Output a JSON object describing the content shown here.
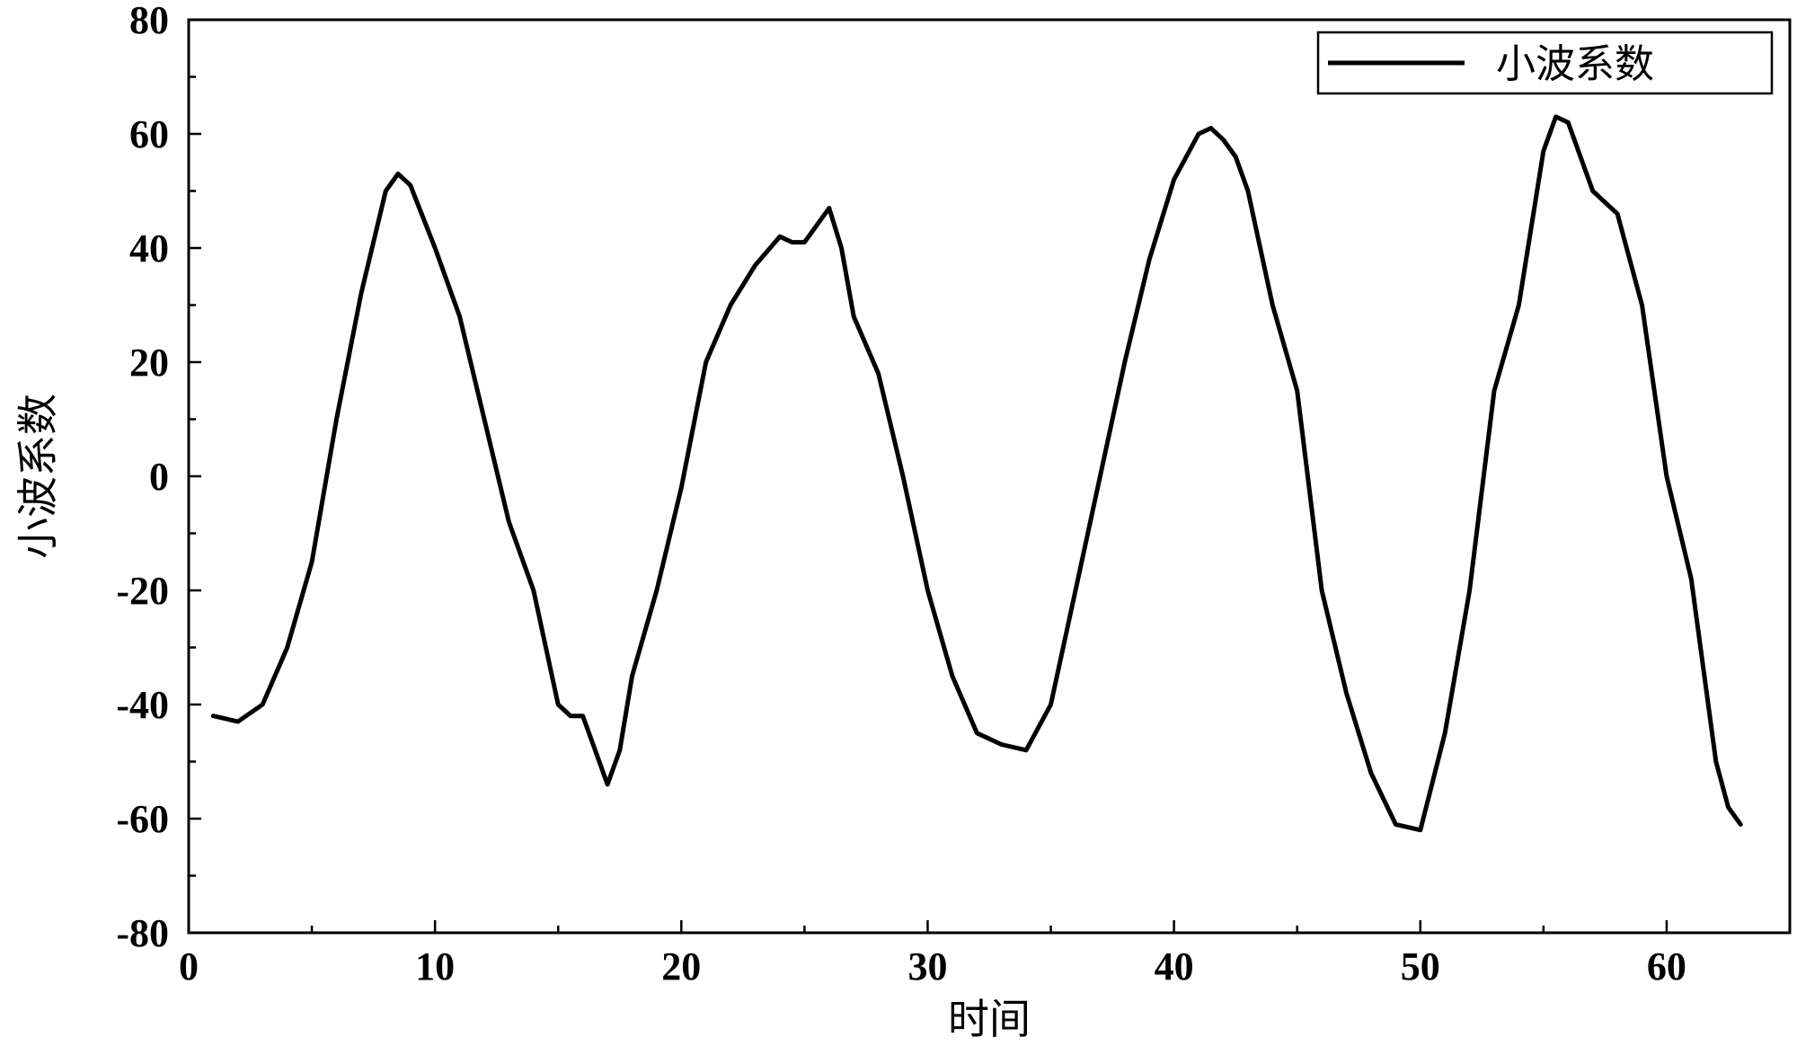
{
  "chart_data": {
    "type": "line",
    "title": "",
    "xlabel": "时间",
    "ylabel": "小波系数",
    "xlim": [
      0,
      65
    ],
    "ylim": [
      -80,
      80
    ],
    "x_ticks": [
      0,
      10,
      20,
      30,
      40,
      50,
      60
    ],
    "y_ticks": [
      -80,
      -60,
      -40,
      -20,
      0,
      20,
      40,
      60,
      80
    ],
    "grid": false,
    "legend_position": "top-right",
    "series": [
      {
        "name": "小波系数",
        "color": "#000000",
        "x": [
          1,
          2,
          3,
          4,
          5,
          6,
          7,
          8,
          8.5,
          9,
          10,
          11,
          12,
          13,
          14,
          14.5,
          15,
          15.5,
          16,
          16.5,
          17,
          17.5,
          18,
          19,
          20,
          21,
          22,
          23,
          24,
          24.5,
          25,
          25.5,
          26,
          26.5,
          27,
          28,
          29,
          30,
          31,
          32,
          33,
          34,
          35,
          36,
          37,
          38,
          39,
          40,
          41,
          41.5,
          42,
          42.5,
          43,
          44,
          45,
          46,
          47,
          48,
          49,
          50,
          51,
          52,
          53,
          54,
          55,
          55.5,
          56,
          57,
          58,
          59,
          60,
          61,
          62,
          62.5,
          63
        ],
        "y": [
          -42,
          -43,
          -40,
          -30,
          -15,
          10,
          32,
          50,
          53,
          51,
          40,
          28,
          10,
          -8,
          -20,
          -30,
          -40,
          -42,
          -42,
          -48,
          -54,
          -48,
          -35,
          -20,
          -2,
          20,
          30,
          37,
          42,
          41,
          41,
          44,
          47,
          40,
          28,
          18,
          0,
          -20,
          -35,
          -45,
          -47,
          -48,
          -40,
          -20,
          0,
          20,
          38,
          52,
          60,
          61,
          59,
          56,
          50,
          30,
          15,
          -20,
          -38,
          -52,
          -61,
          -62,
          -45,
          -20,
          15,
          30,
          57,
          63,
          62,
          50,
          46,
          30,
          0,
          -18,
          -50,
          -58,
          -61
        ]
      }
    ]
  }
}
